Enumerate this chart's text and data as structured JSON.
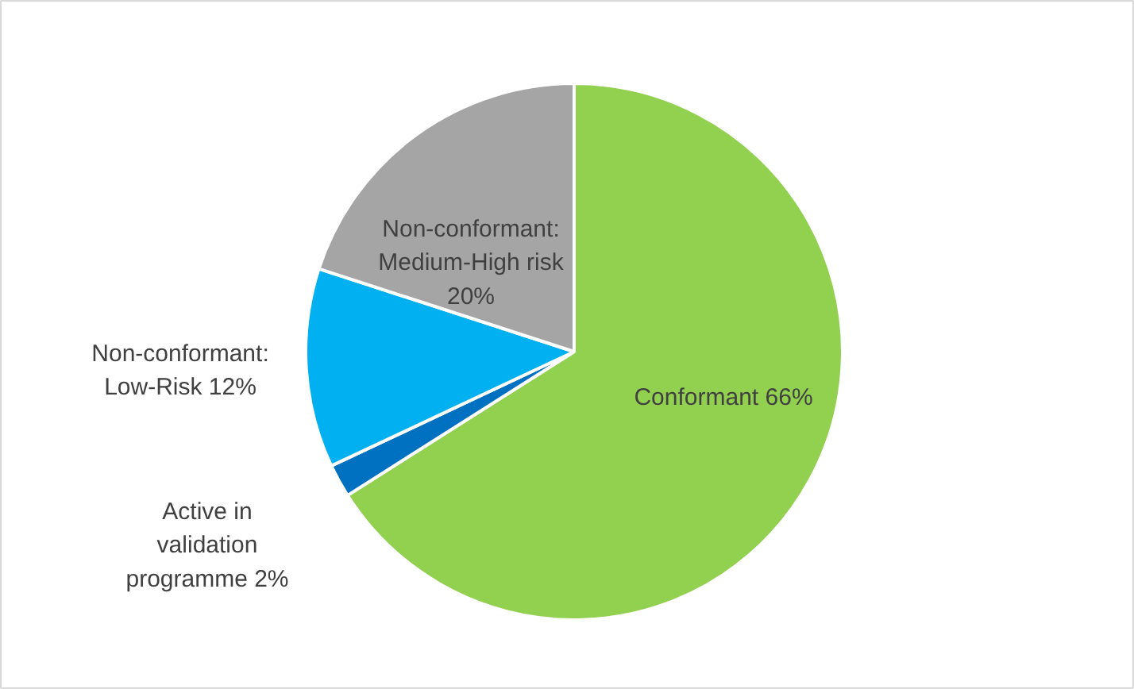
{
  "chart_data": {
    "type": "pie",
    "categories": [
      "Conformant",
      "Active in validation programme",
      "Non-conformant: Low-Risk",
      "Non-conformant: Medium-High risk"
    ],
    "values": [
      66,
      2,
      12,
      20
    ],
    "value_labels": [
      "66%",
      "2%",
      "12%",
      "20%"
    ],
    "colors": [
      "#92d050",
      "#0070c0",
      "#00b0f0",
      "#a5a5a5"
    ]
  }
}
